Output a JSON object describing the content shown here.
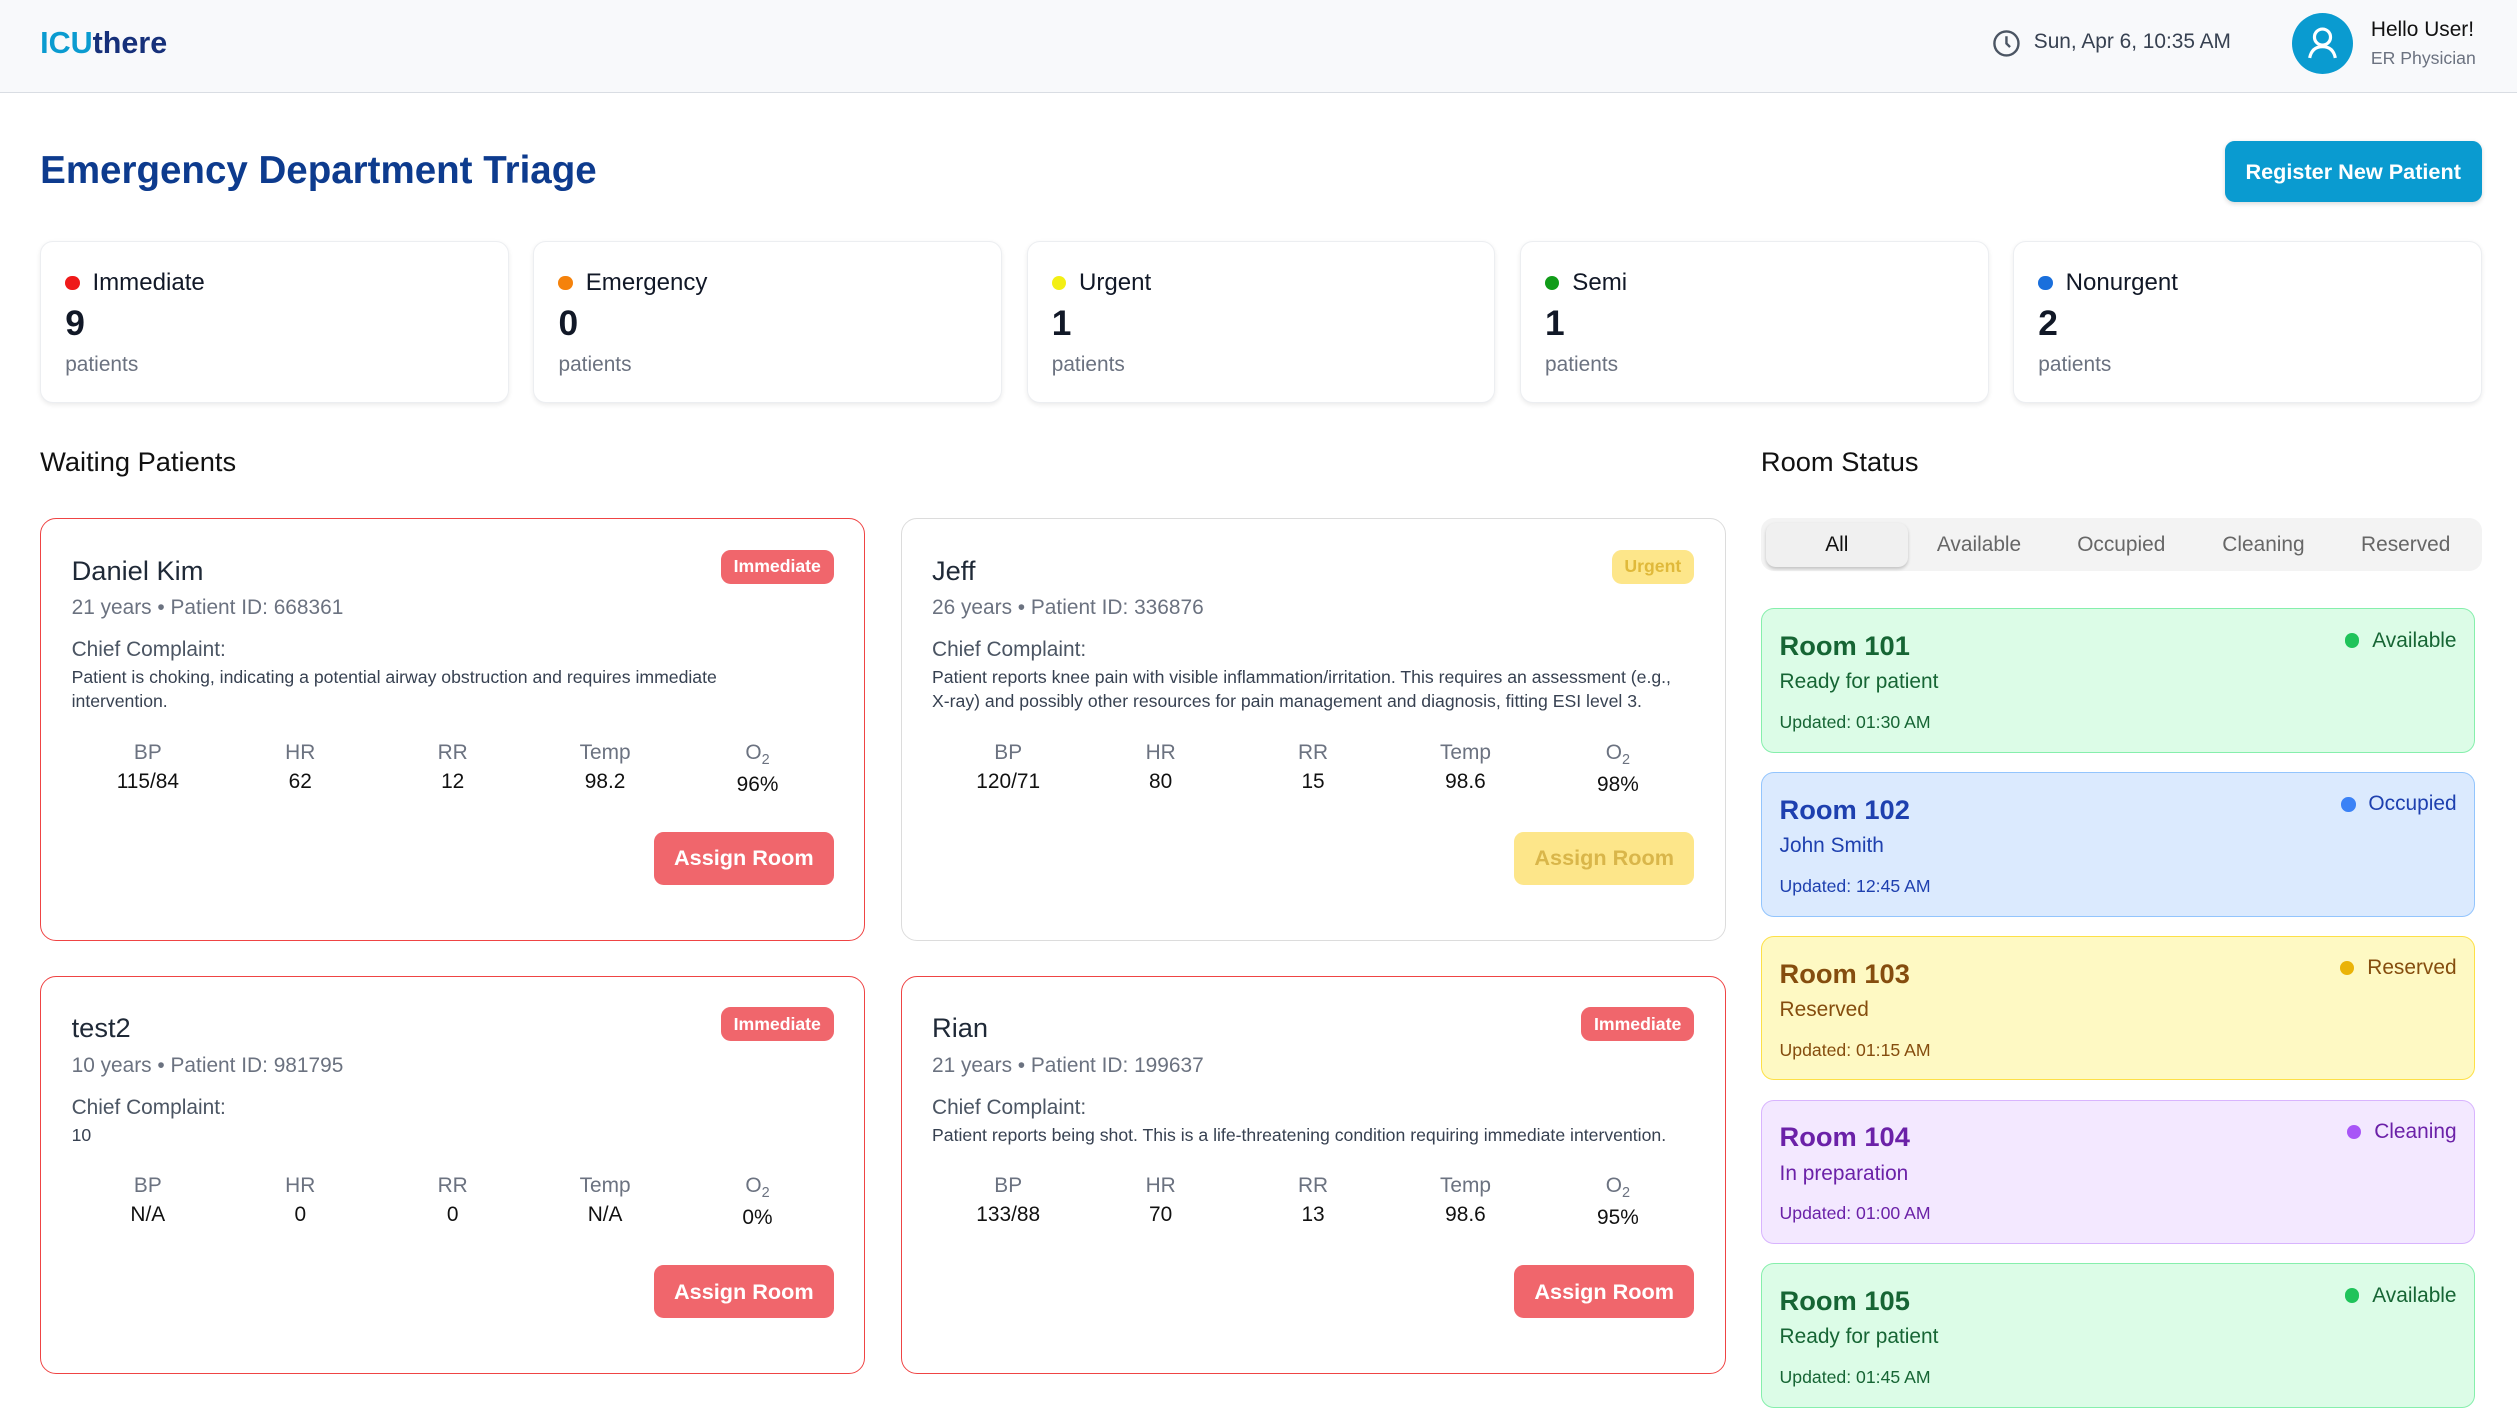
{
  "header": {
    "logo_a": "ICU",
    "logo_b": "there",
    "datetime": "Sun, Apr 6, 10:35 AM",
    "greeting": "Hello User!",
    "role": "ER Physician"
  },
  "page": {
    "title": "Emergency Department Triage",
    "register_label": "Register New Patient",
    "waiting_title": "Waiting Patients",
    "rooms_title": "Room Status"
  },
  "stats": [
    {
      "label": "Immediate",
      "count": "9",
      "unit": "patients",
      "color": "#ef1a1a"
    },
    {
      "label": "Emergency",
      "count": "0",
      "unit": "patients",
      "color": "#f5820b"
    },
    {
      "label": "Urgent",
      "count": "1",
      "unit": "patients",
      "color": "#f3ef14"
    },
    {
      "label": "Semi",
      "count": "1",
      "unit": "patients",
      "color": "#119c19"
    },
    {
      "label": "Nonurgent",
      "count": "2",
      "unit": "patients",
      "color": "#1a6fdc"
    }
  ],
  "vital_labels": {
    "bp": "BP",
    "hr": "HR",
    "rr": "RR",
    "temp": "Temp",
    "o2": "O",
    "o2_sub": "2"
  },
  "cc_label": "Chief Complaint:",
  "assign_label": "Assign Room",
  "patients": [
    {
      "name": "Daniel Kim",
      "meta": "21 years • Patient ID: 668361",
      "level": "Immediate",
      "complaint": "Patient is choking, indicating a potential airway obstruction and requires immediate intervention.",
      "bp": "115/84",
      "hr": "62",
      "rr": "12",
      "temp": "98.2",
      "o2": "96%"
    },
    {
      "name": "Jeff",
      "meta": "26 years • Patient ID: 336876",
      "level": "Urgent",
      "complaint": "Patient reports knee pain with visible inflammation/irritation. This requires an assessment (e.g., X-ray) and possibly other resources for pain management and diagnosis, fitting ESI level 3.",
      "bp": "120/71",
      "hr": "80",
      "rr": "15",
      "temp": "98.6",
      "o2": "98%"
    },
    {
      "name": "test2",
      "meta": "10 years • Patient ID: 981795",
      "level": "Immediate",
      "complaint": "10",
      "bp": "N/A",
      "hr": "0",
      "rr": "0",
      "temp": "N/A",
      "o2": "0%"
    },
    {
      "name": "Rian",
      "meta": "21 years • Patient ID: 199637",
      "level": "Immediate",
      "complaint": "Patient reports being shot. This is a life-threatening condition requiring immediate intervention.",
      "bp": "133/88",
      "hr": "70",
      "rr": "13",
      "temp": "98.6",
      "o2": "95%"
    }
  ],
  "room_tabs": [
    "All",
    "Available",
    "Occupied",
    "Cleaning",
    "Reserved"
  ],
  "rooms": [
    {
      "name": "Room 101",
      "detail": "Ready for patient",
      "updated": "Updated: 01:30 AM",
      "status": "Available"
    },
    {
      "name": "Room 102",
      "detail": "John Smith",
      "updated": "Updated: 12:45 AM",
      "status": "Occupied"
    },
    {
      "name": "Room 103",
      "detail": "Reserved",
      "updated": "Updated: 01:15 AM",
      "status": "Reserved"
    },
    {
      "name": "Room 104",
      "detail": "In preparation",
      "updated": "Updated: 01:00 AM",
      "status": "Cleaning"
    },
    {
      "name": "Room 105",
      "detail": "Ready for patient",
      "updated": "Updated: 01:45 AM",
      "status": "Available"
    }
  ]
}
